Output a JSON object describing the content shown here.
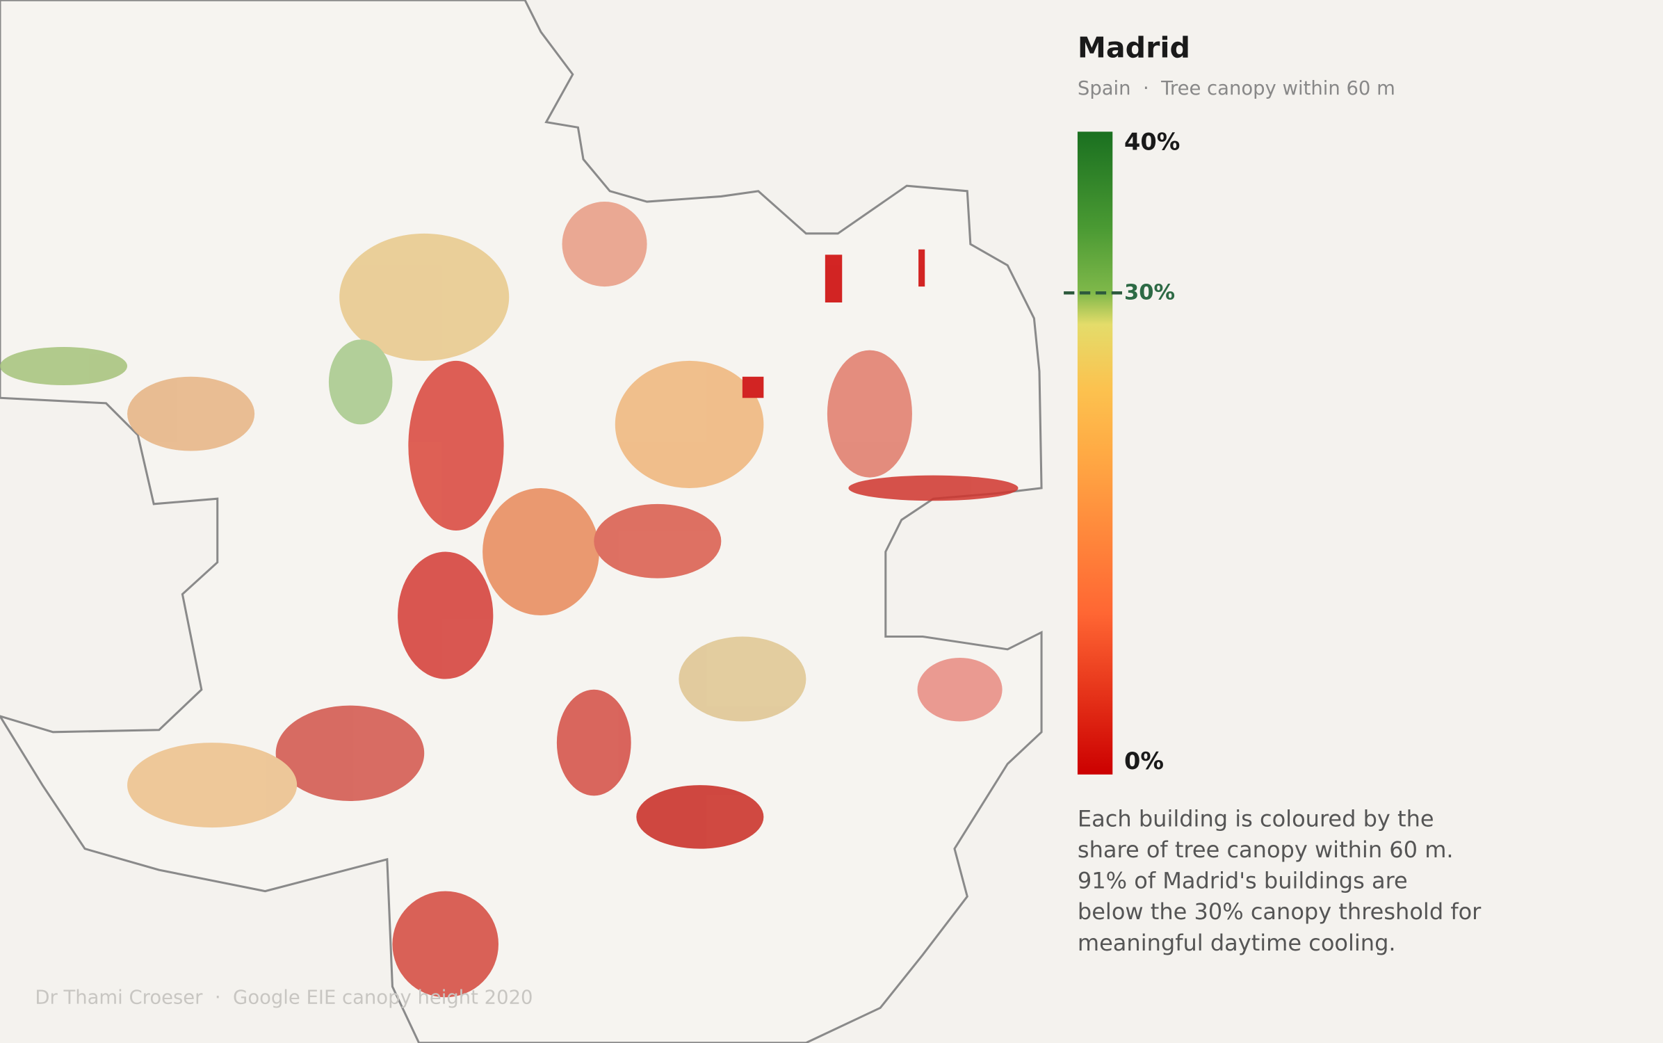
{
  "header": {
    "title": "Madrid",
    "subtitle": "Spain  ·  Tree canopy within 60 m"
  },
  "legend": {
    "max_label": "40%",
    "threshold_label": "30%",
    "min_label": "0%"
  },
  "description": [
    "Each building is coloured by the",
    "share of tree canopy within 60 m.",
    "91% of Madrid's buildings are",
    "below the 30% canopy threshold for",
    "meaningful daytime cooling."
  ],
  "credit": "Dr Thami Croeser  ·  Google EIE canopy height 2020"
}
